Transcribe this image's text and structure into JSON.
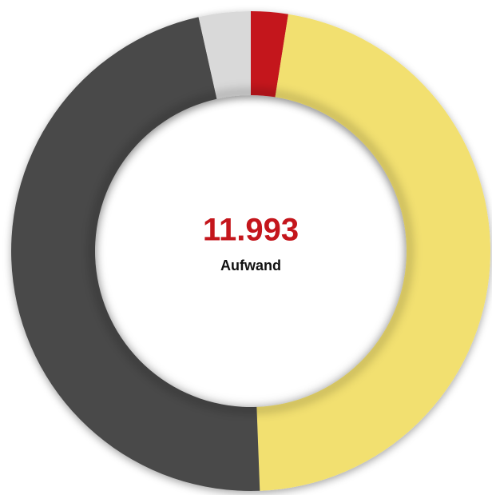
{
  "chart_data": {
    "type": "donut",
    "center_value": "11.993",
    "center_label": "Aufwand",
    "series": [
      {
        "color": "#c4161c",
        "values": [
          2.5,
          46.9,
          47.1,
          3.5
        ],
        "colors": [
          "#c4161c",
          "#f2e070",
          "#4a4a4a",
          "#d9d9d9"
        ]
      }
    ]
  }
}
